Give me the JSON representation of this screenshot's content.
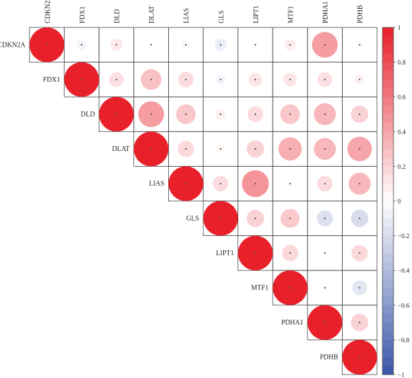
{
  "chart_data": {
    "type": "heatmap",
    "variables": [
      "CDKN2A",
      "FDX1",
      "DLD",
      "DLAT",
      "LIAS",
      "GLS",
      "LIPT1",
      "MTF1",
      "PDHA1",
      "PDHB"
    ],
    "matrix_layout": "upper-triangle",
    "correlations": [
      [
        1.0,
        -0.08,
        0.12,
        0.02,
        -0.06,
        -0.12,
        0.02,
        0.1,
        0.55,
        0.03
      ],
      [
        null,
        1.0,
        0.18,
        0.35,
        0.2,
        -0.08,
        0.15,
        0.15,
        0.18,
        0.08
      ],
      [
        null,
        null,
        1.0,
        0.55,
        0.32,
        0.08,
        0.2,
        0.32,
        0.4,
        0.25
      ],
      [
        null,
        null,
        null,
        1.0,
        0.22,
        0.06,
        0.25,
        0.45,
        0.4,
        0.5
      ],
      [
        null,
        null,
        null,
        null,
        1.0,
        0.2,
        0.6,
        0.03,
        0.2,
        0.4
      ],
      [
        null,
        null,
        null,
        null,
        null,
        1.0,
        0.25,
        0.3,
        -0.22,
        -0.25
      ],
      [
        null,
        null,
        null,
        null,
        null,
        null,
        1.0,
        0.22,
        0.02,
        0.22
      ],
      [
        null,
        null,
        null,
        null,
        null,
        null,
        null,
        1.0,
        0.02,
        -0.18
      ],
      [
        null,
        null,
        null,
        null,
        null,
        null,
        null,
        null,
        1.0,
        0.25
      ],
      [
        null,
        null,
        null,
        null,
        null,
        null,
        null,
        null,
        null,
        1.0
      ]
    ],
    "colorbar": {
      "range": [
        -1,
        1
      ],
      "ticks": [
        1,
        0.8,
        0.6,
        0.4,
        0.2,
        0,
        -0.2,
        -0.4,
        -0.6,
        -0.8,
        -1
      ],
      "tick_labels": [
        "1",
        "0.8",
        "0.6",
        "0.4",
        "0.2",
        "0",
        "−0.2",
        "−0.4",
        "−0.6",
        "−0.8",
        "−1"
      ],
      "low_color": "#3a56a8",
      "mid_color": "#ffffff",
      "high_color": "#e8202a"
    },
    "marker": "circle area proportional to |r|, center dot",
    "title": "",
    "xlabel": "",
    "ylabel": ""
  }
}
